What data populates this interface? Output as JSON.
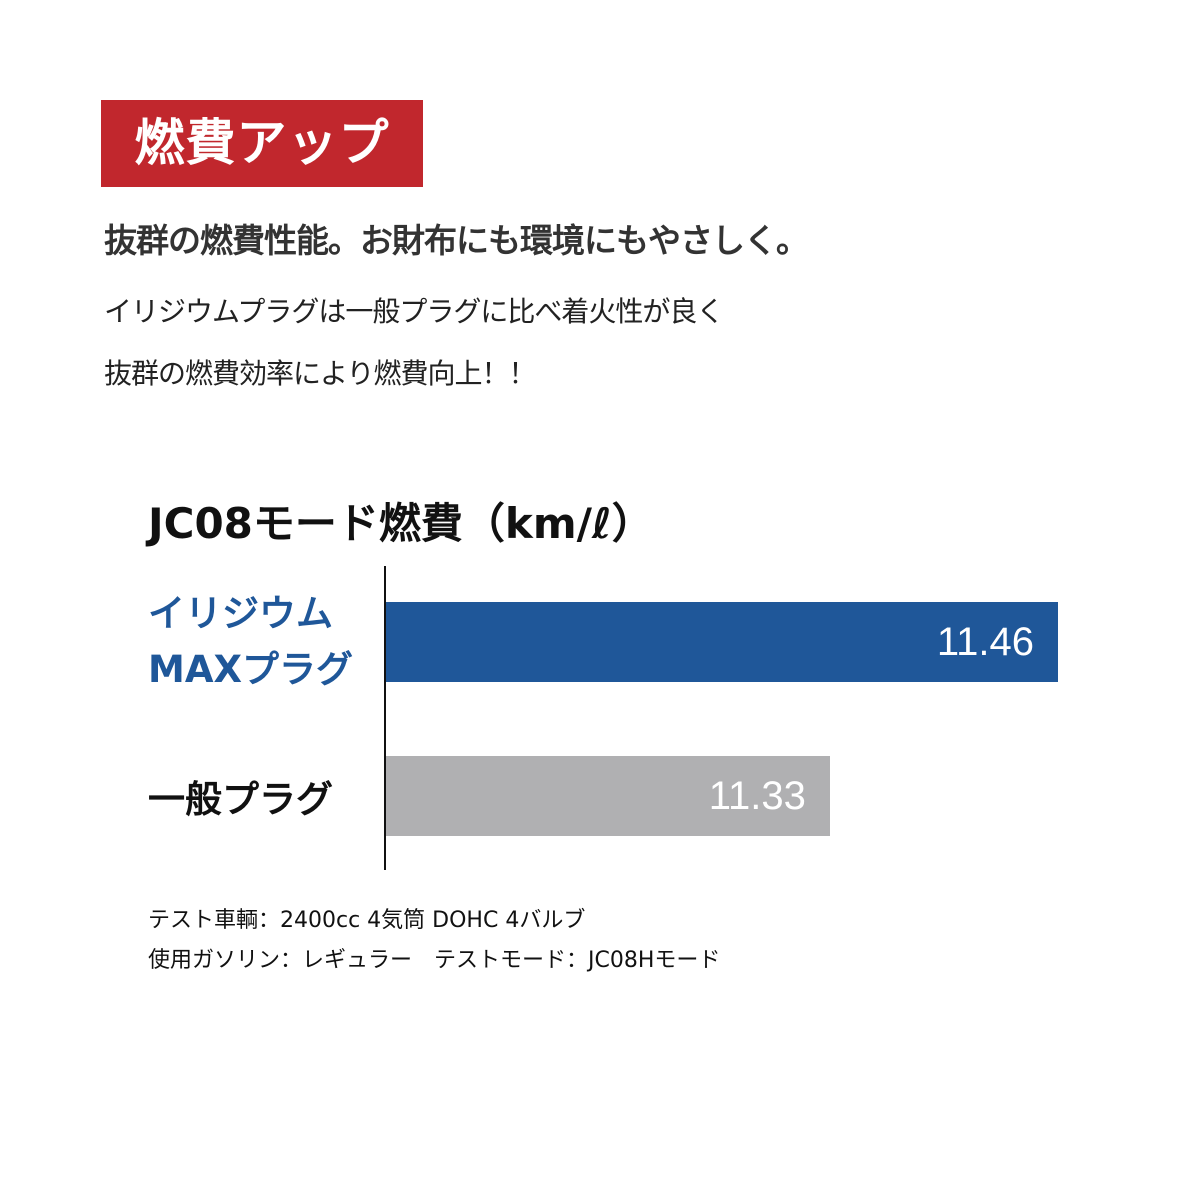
{
  "header": {
    "badge": "燃費アップ",
    "subtitle": "抜群の燃費性能。お財布にも環境にもやさしく。",
    "body_lines": [
      "イリジウムプラグは一般プラグに比べ着火性が良く",
      "抜群の燃費効率により燃費向上！！"
    ]
  },
  "chart_data": {
    "type": "bar",
    "orientation": "horizontal",
    "title": "JC08モード燃費（km/ℓ）",
    "categories": [
      [
        "イリジウム",
        "MAXプラグ"
      ],
      [
        "一般プラグ"
      ]
    ],
    "values": [
      11.46,
      11.33
    ],
    "value_labels": [
      "11.46",
      "11.33"
    ],
    "bar_colors": [
      "#1f5799",
      "#b0b0b2"
    ],
    "label_colors": [
      "#1f5799",
      "#111111"
    ],
    "xlim": [
      11.077,
      11.46
    ],
    "grid": false
  },
  "footnotes": [
    "テスト車輌：2400cc 4気筒 DOHC 4バルブ",
    "使用ガソリン：レギュラー　テストモード：JC08Hモード"
  ],
  "colors": {
    "accent": "#c1272d"
  }
}
